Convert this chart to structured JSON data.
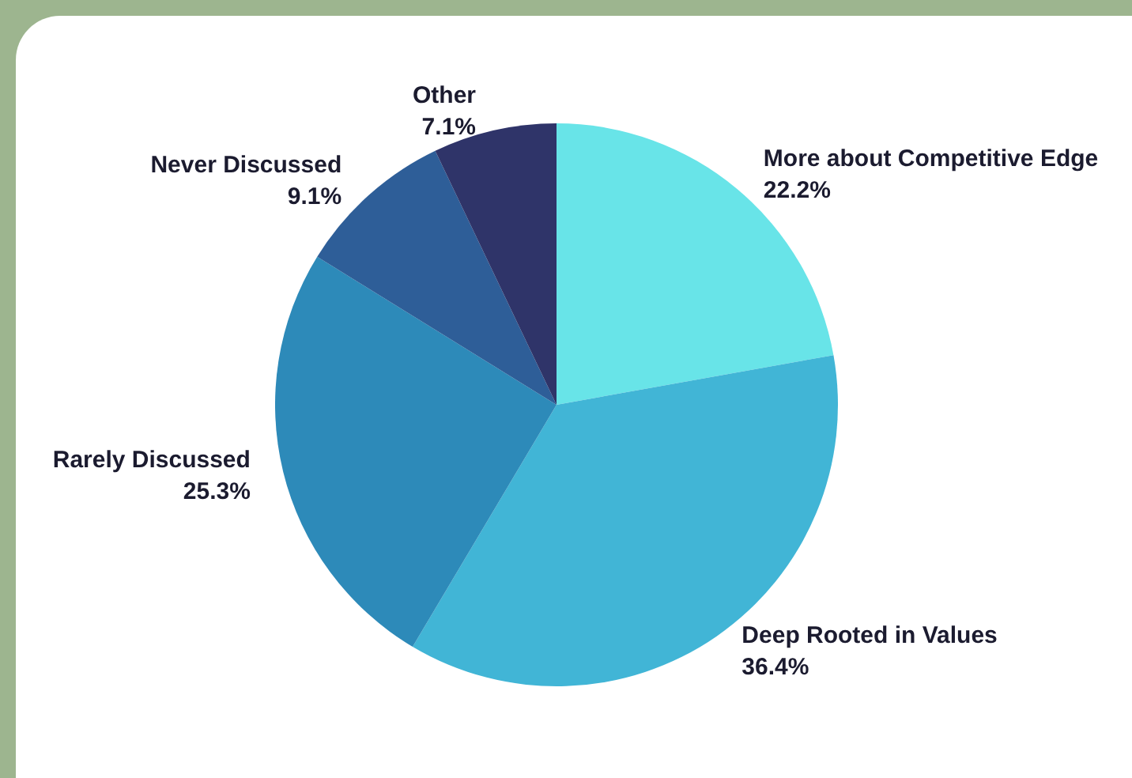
{
  "chart_data": {
    "type": "pie",
    "categories": [
      "More about Competitive Edge",
      "Deep Rooted in Values",
      "Rarely Discussed",
      "Never Discussed",
      "Other"
    ],
    "values": [
      22.2,
      36.4,
      25.3,
      9.1,
      7.1
    ],
    "value_labels": [
      "22.2%",
      "36.4%",
      "25.3%",
      "9.1%",
      "7.1%"
    ],
    "colors": [
      "#68e4e8",
      "#41b5d6",
      "#2d8ab9",
      "#2e5e98",
      "#2f3469"
    ],
    "legend": false
  }
}
